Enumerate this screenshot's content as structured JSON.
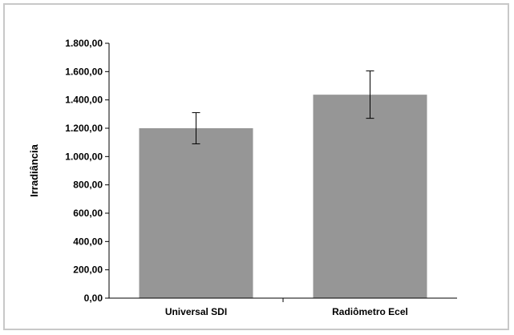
{
  "chart_data": {
    "type": "bar",
    "title": "",
    "xlabel": "",
    "ylabel": "Irradiância",
    "categories": [
      "Universal SDI",
      "Radiômetro Ecel"
    ],
    "values": [
      1200,
      1437
    ],
    "error_low": [
      1090,
      1270
    ],
    "error_high": [
      1310,
      1605
    ],
    "ylim": [
      0,
      1800
    ],
    "yticks": [
      0,
      200,
      400,
      600,
      800,
      1000,
      1200,
      1400,
      1600,
      1800
    ],
    "ytick_labels": [
      "0,00",
      "200,00",
      "400,00",
      "600,00",
      "800,00",
      "1.000,00",
      "1.200,00",
      "1.400,00",
      "1.600,00",
      "1.800,00"
    ],
    "grid": false,
    "bar_color": "#969696"
  }
}
